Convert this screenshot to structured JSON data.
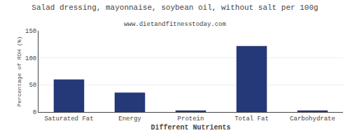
{
  "chart_data": {
    "type": "bar",
    "title": "Salad dressing, mayonnaise, soybean oil, without salt per 100g",
    "subtitle": "www.dietandfitnesstoday.com",
    "xlabel": "Different Nutrients",
    "ylabel": "Percentage of RDH (%)",
    "categories": [
      "Saturated Fat",
      "Energy",
      "Protein",
      "Total Fat",
      "Carbohydrate"
    ],
    "values": [
      60,
      36,
      3,
      122,
      3
    ],
    "color": "#253878",
    "ylim": [
      0,
      150
    ],
    "yticks": [
      0,
      50,
      100,
      150
    ],
    "grid": true
  }
}
